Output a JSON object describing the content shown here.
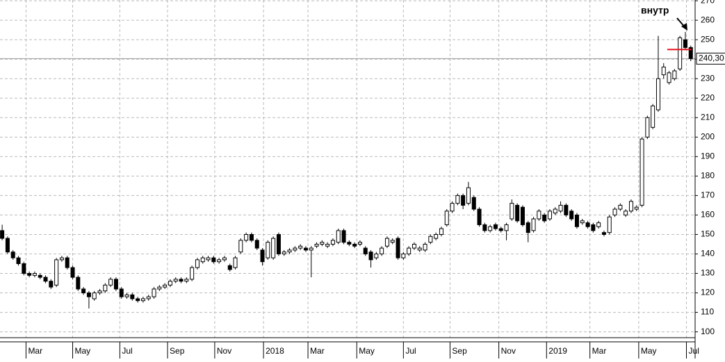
{
  "chart_data": {
    "type": "candlestick",
    "x": [
      4,
      5,
      6,
      7,
      8,
      9,
      10,
      11,
      12,
      13,
      14,
      15,
      16,
      17,
      18,
      19,
      20,
      21,
      22,
      23,
      24,
      25,
      26,
      27,
      28,
      29,
      30,
      31,
      32,
      33,
      34,
      35,
      36,
      37,
      38,
      39,
      40,
      41,
      42,
      43,
      44,
      45,
      46,
      47,
      48,
      49,
      50,
      51,
      52,
      53,
      54,
      55,
      56,
      57,
      58,
      59,
      60,
      61,
      62,
      63,
      64,
      65,
      66,
      67,
      68,
      69,
      70,
      71,
      72,
      73,
      74,
      75,
      76,
      77,
      78,
      79,
      80,
      81,
      82,
      83,
      84,
      85,
      86,
      87,
      88,
      89,
      90,
      91,
      92,
      93,
      94,
      95,
      96,
      97,
      98,
      99,
      100,
      101,
      102,
      103,
      104,
      105,
      106,
      107,
      108,
      109,
      110,
      111,
      112,
      113,
      114,
      115,
      116,
      117,
      118,
      119,
      120,
      121,
      122,
      123,
      124,
      125,
      126,
      127,
      128,
      129,
      130,
      131
    ],
    "candles": [
      [
        152,
        155,
        147,
        148
      ],
      [
        148,
        149,
        140,
        141
      ],
      [
        141,
        142,
        137,
        138
      ],
      [
        138,
        139,
        134,
        135
      ],
      [
        135,
        136,
        129,
        130
      ],
      [
        130,
        131,
        128,
        129
      ],
      [
        129,
        131,
        128,
        130
      ],
      [
        129,
        130,
        127,
        128
      ],
      [
        128,
        129,
        125,
        126
      ],
      [
        126,
        127,
        122,
        123
      ],
      [
        124,
        138,
        123,
        137
      ],
      [
        137,
        139,
        136,
        138
      ],
      [
        138,
        139,
        132,
        133
      ],
      [
        133,
        134,
        127,
        128
      ],
      [
        128,
        129,
        121,
        122
      ],
      [
        122,
        123,
        119,
        120
      ],
      [
        120,
        121,
        112,
        118
      ],
      [
        117,
        121,
        116,
        120
      ],
      [
        120,
        122,
        119,
        121
      ],
      [
        121,
        125,
        120,
        124
      ],
      [
        124,
        128,
        123,
        127
      ],
      [
        127,
        128,
        121,
        122
      ],
      [
        122,
        123,
        117,
        118
      ],
      [
        118,
        120,
        117,
        119
      ],
      [
        119,
        120,
        116,
        117
      ],
      [
        117,
        118,
        115,
        116
      ],
      [
        116,
        118,
        115,
        117
      ],
      [
        117,
        119,
        116,
        118
      ],
      [
        118,
        123,
        117,
        122
      ],
      [
        122,
        124,
        121,
        123
      ],
      [
        123,
        125,
        122,
        124
      ],
      [
        124,
        127,
        123,
        126
      ],
      [
        126,
        128,
        125,
        127
      ],
      [
        127,
        128,
        125,
        126
      ],
      [
        126,
        128,
        125,
        127
      ],
      [
        127,
        134,
        126,
        133
      ],
      [
        133,
        138,
        132,
        137
      ],
      [
        136,
        139,
        135,
        138
      ],
      [
        137,
        139,
        136,
        138
      ],
      [
        138,
        139,
        135,
        136
      ],
      [
        136,
        138,
        135,
        137
      ],
      [
        137,
        139,
        136,
        138
      ],
      [
        134,
        135,
        131,
        132
      ],
      [
        133,
        139,
        132,
        138
      ],
      [
        141,
        148,
        140,
        147
      ],
      [
        147,
        151,
        146,
        150
      ],
      [
        150,
        151,
        146,
        147
      ],
      [
        147,
        148,
        142,
        143
      ],
      [
        142,
        143,
        134,
        136
      ],
      [
        138,
        147,
        137,
        146
      ],
      [
        138,
        149,
        137,
        148
      ],
      [
        150,
        151,
        139,
        140
      ],
      [
        140,
        142,
        139,
        141
      ],
      [
        141,
        143,
        140,
        142
      ],
      [
        142,
        144,
        141,
        143
      ],
      [
        143,
        145,
        142,
        144
      ],
      [
        143,
        144,
        141,
        142
      ],
      [
        142,
        144,
        128,
        143
      ],
      [
        144,
        146,
        143,
        145
      ],
      [
        145,
        147,
        144,
        146
      ],
      [
        144,
        146,
        143,
        145
      ],
      [
        145,
        148,
        144,
        147
      ],
      [
        146,
        153,
        145,
        152
      ],
      [
        152,
        153,
        145,
        146
      ],
      [
        146,
        147,
        144,
        145
      ],
      [
        145,
        146,
        143,
        144
      ],
      [
        145,
        147,
        144,
        146
      ],
      [
        143,
        144,
        139,
        140
      ],
      [
        141,
        142,
        133,
        137
      ],
      [
        138,
        141,
        137,
        140
      ],
      [
        140,
        144,
        139,
        143
      ],
      [
        144,
        149,
        143,
        148
      ],
      [
        146,
        148,
        145,
        147
      ],
      [
        148,
        149,
        137,
        138
      ],
      [
        138,
        141,
        137,
        140
      ],
      [
        140,
        144,
        139,
        143
      ],
      [
        143,
        146,
        142,
        145
      ],
      [
        142,
        144,
        141,
        143
      ],
      [
        142,
        146,
        141,
        145
      ],
      [
        146,
        150,
        145,
        149
      ],
      [
        148,
        151,
        147,
        150
      ],
      [
        150,
        154,
        149,
        153
      ],
      [
        155,
        163,
        154,
        162
      ],
      [
        162,
        167,
        161,
        166
      ],
      [
        166,
        171,
        165,
        170
      ],
      [
        170,
        171,
        163,
        165
      ],
      [
        166,
        177,
        165,
        174
      ],
      [
        169,
        170,
        162,
        163
      ],
      [
        163,
        164,
        154,
        155
      ],
      [
        155,
        156,
        151,
        152
      ],
      [
        152,
        155,
        151,
        154
      ],
      [
        155,
        156,
        152,
        153
      ],
      [
        153,
        154,
        151,
        152
      ],
      [
        152,
        156,
        147,
        155
      ],
      [
        158,
        168,
        157,
        166
      ],
      [
        165,
        166,
        156,
        157
      ],
      [
        164,
        165,
        154,
        155
      ],
      [
        156,
        157,
        146,
        151
      ],
      [
        152,
        159,
        151,
        158
      ],
      [
        158,
        163,
        157,
        162
      ],
      [
        160,
        161,
        156,
        157
      ],
      [
        158,
        163,
        157,
        162
      ],
      [
        161,
        164,
        160,
        163
      ],
      [
        162,
        167,
        161,
        165
      ],
      [
        165,
        166,
        159,
        160
      ],
      [
        162,
        163,
        157,
        158
      ],
      [
        160,
        161,
        153,
        154
      ],
      [
        156,
        158,
        155,
        157
      ],
      [
        156,
        157,
        153,
        154
      ],
      [
        155,
        156,
        151,
        152
      ],
      [
        154,
        157,
        153,
        156
      ],
      [
        151,
        152,
        149,
        150
      ],
      [
        151,
        160,
        150,
        159
      ],
      [
        160,
        164,
        159,
        163
      ],
      [
        163,
        166,
        162,
        165
      ],
      [
        160,
        163,
        159,
        162
      ],
      [
        162,
        168,
        161,
        167
      ],
      [
        163,
        165,
        162,
        164
      ],
      [
        165,
        200,
        164,
        199
      ],
      [
        200,
        211,
        199,
        210
      ],
      [
        205,
        217,
        204,
        216
      ],
      [
        214,
        252,
        213,
        230
      ],
      [
        232,
        238,
        230,
        236
      ],
      [
        228,
        234,
        227,
        233
      ],
      [
        230,
        235,
        229,
        234
      ],
      [
        235,
        252,
        234,
        251
      ],
      [
        250,
        254,
        245,
        246
      ],
      [
        246,
        247,
        239,
        240.3
      ]
    ],
    "xlim": [
      3.6,
      131.8
    ],
    "xticks": [
      {
        "value": 8.4,
        "label": "Mar"
      },
      {
        "value": 17.0,
        "label": "May"
      },
      {
        "value": 25.7,
        "label": "Jul"
      },
      {
        "value": 34.5,
        "label": "Sep"
      },
      {
        "value": 43.2,
        "label": "Nov"
      },
      {
        "value": 52.2,
        "label": "2018"
      },
      {
        "value": 60.4,
        "label": "Mar"
      },
      {
        "value": 69.4,
        "label": "May"
      },
      {
        "value": 78.0,
        "label": "Jul"
      },
      {
        "value": 86.6,
        "label": "Sep"
      },
      {
        "value": 95.6,
        "label": "Nov"
      },
      {
        "value": 104.4,
        "label": "2019"
      },
      {
        "value": 112.4,
        "label": "Mar"
      },
      {
        "value": 121.4,
        "label": "May"
      },
      {
        "value": 130.2,
        "label": "Jul"
      }
    ],
    "ylim": [
      97,
      270.4
    ],
    "yticks": [
      100,
      110,
      120,
      130,
      140,
      150,
      160,
      170,
      180,
      190,
      200,
      210,
      220,
      230,
      240,
      250,
      260,
      270
    ],
    "grid": true,
    "up_color": "#ffffff",
    "down_color": "#000000",
    "last_price": {
      "value": 240.3,
      "label": "240,30"
    },
    "level": 245,
    "level_color": "#e8141c",
    "annotation": "внутр"
  }
}
